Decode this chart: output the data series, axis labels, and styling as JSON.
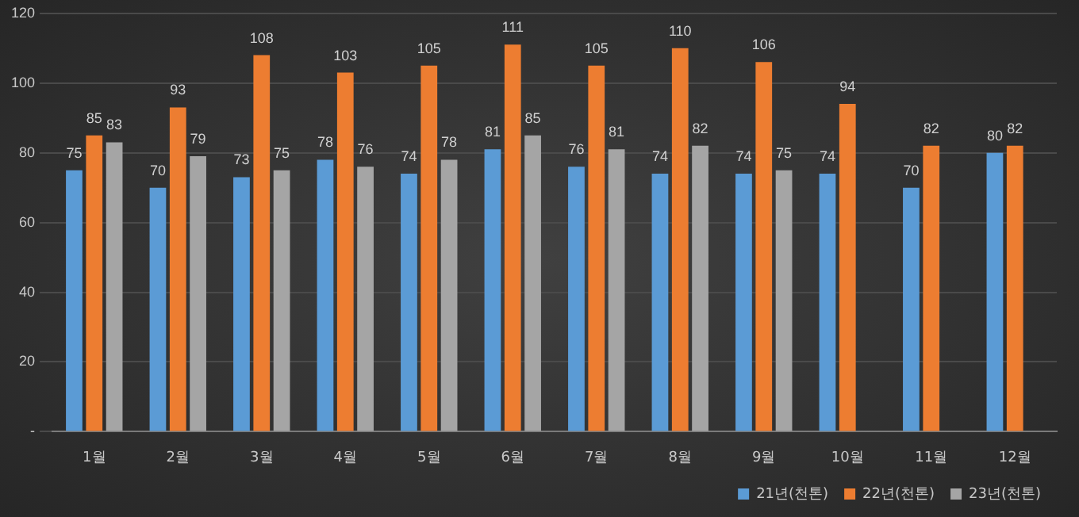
{
  "chart_data": {
    "type": "bar",
    "categories": [
      "1월",
      "2월",
      "3월",
      "4월",
      "5월",
      "6월",
      "7월",
      "8월",
      "9월",
      "10월",
      "11월",
      "12월"
    ],
    "series": [
      {
        "name": "21년(천톤)",
        "color": "#5b9bd5",
        "values": [
          75,
          70,
          73,
          78,
          74,
          81,
          76,
          74,
          74,
          74,
          70,
          80
        ]
      },
      {
        "name": "22년(천톤)",
        "color": "#ed7d31",
        "values": [
          85,
          93,
          108,
          103,
          105,
          111,
          105,
          110,
          106,
          94,
          82,
          82
        ]
      },
      {
        "name": "23년(천톤)",
        "color": "#a5a5a5",
        "values": [
          83,
          79,
          75,
          76,
          78,
          85,
          81,
          82,
          75,
          null,
          null,
          null
        ]
      }
    ],
    "ylim": [
      0,
      120
    ],
    "yticks": [
      {
        "value": 0,
        "label": "-"
      },
      20,
      40,
      60,
      80,
      100,
      120
    ],
    "grid": "y",
    "legend": "bottom",
    "data_labels": true
  }
}
